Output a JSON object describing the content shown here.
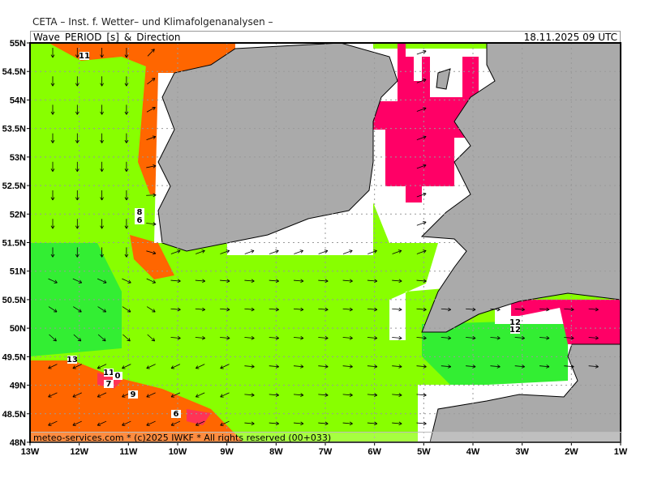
{
  "header": {
    "institute": "CETA – Inst. f. Wetter– und Klimafolgenanalysen –",
    "title": "Wave_PERIOD_[s]_&_Direction",
    "valid_time": "18.11.2025 09 UTC"
  },
  "footer": {
    "credit": "meteo-services.com * (c)2025 IWKF * All rights reserved (00+033)"
  },
  "axes": {
    "lat_labels": [
      "55N",
      "54.5N",
      "54N",
      "53.5N",
      "53N",
      "52.5N",
      "52N",
      "51.5N",
      "51N",
      "50.5N",
      "50N",
      "49.5N",
      "49N",
      "48.5N",
      "48N"
    ],
    "lon_labels": [
      "13W",
      "12W",
      "11W",
      "10W",
      "9W",
      "8W",
      "7W",
      "6W",
      "5W",
      "4W",
      "3W",
      "2W",
      "1W"
    ]
  },
  "contour_labels": [
    "11",
    "8",
    "6",
    "13",
    "11",
    "0",
    "7",
    "9",
    "6",
    "12",
    "12"
  ],
  "colors": {
    "sea_base": "#88ff00",
    "sea_dark": "#33ee33",
    "period_high": "#ff6600",
    "period_peak": "#ff0066",
    "land": "#aaaaaa",
    "no_data": "#ffffff"
  }
}
